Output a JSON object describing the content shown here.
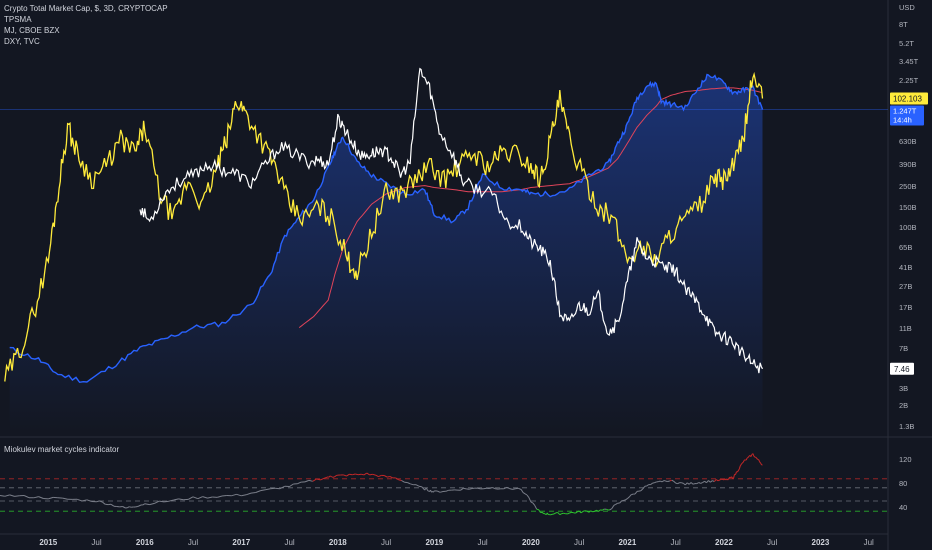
{
  "legend": {
    "title": "Crypto Total Market Cap, $, 3D, CRYPTOCAP",
    "line2": "TPSMA",
    "line3": "MJ, CBOE BZX",
    "line4": "DXY, TVC"
  },
  "colors": {
    "background": "#131722",
    "crypto": "#2962ff",
    "sma": "#e0445a",
    "mj": "#ffffff",
    "dxy": "#ffeb3b",
    "osc_neutral": "#7b7f8a",
    "osc_high": "#c62828",
    "osc_low": "#2ec52e"
  },
  "price_axis": {
    "currency": "USD",
    "ticks": [
      "8T",
      "5.2T",
      "3.45T",
      "2.25T",
      "1.45T",
      "630B",
      "390B",
      "250B",
      "150B",
      "100B",
      "65B",
      "41B",
      "27B",
      "17B",
      "11B",
      "7B",
      "4.6B",
      "3B",
      "2B",
      "1.3B"
    ]
  },
  "badges": {
    "dxy": "102.103",
    "crypto_value": "1.247T",
    "crypto_countdown": "14:4h",
    "mj": "7.46"
  },
  "x_axis": {
    "labels": [
      "2015",
      "Jul",
      "2016",
      "Jul",
      "2017",
      "Jul",
      "2018",
      "Jul",
      "2019",
      "Jul",
      "2020",
      "Jul",
      "2021",
      "Jul",
      "2022",
      "Jul",
      "2023",
      "Jul"
    ],
    "year_flags": [
      true,
      false,
      true,
      false,
      true,
      false,
      true,
      false,
      true,
      false,
      true,
      false,
      true,
      false,
      true,
      false,
      true,
      false
    ]
  },
  "indicator": {
    "title": "Miokulev market cycles indicator",
    "ticks": [
      "120",
      "80",
      "40"
    ]
  },
  "chart_data": [
    {
      "type": "line",
      "title": "Crypto Total Market Cap, $, 3D, CRYPTOCAP",
      "x": [
        2014.6,
        2014.9,
        2015.1,
        2015.4,
        2015.7,
        2015.95,
        2016.2,
        2016.5,
        2016.8,
        2017.1,
        2017.3,
        2017.45,
        2017.6,
        2017.75,
        2017.9,
        2017.97,
        2018.05,
        2018.2,
        2018.35,
        2018.5,
        2018.7,
        2018.9,
        2019.0,
        2019.2,
        2019.35,
        2019.5,
        2019.7,
        2019.9,
        2020.0,
        2020.2,
        2020.4,
        2020.6,
        2020.8,
        2020.9,
        2021.0,
        2021.1,
        2021.2,
        2021.3,
        2021.35,
        2021.45,
        2021.6,
        2021.75,
        2021.85,
        2022.0,
        2022.1,
        2022.2,
        2022.3,
        2022.4
      ],
      "series": [
        {
          "name": "Crypto Total Market Cap",
          "values": [
            7,
            5.5,
            4,
            3.4,
            5,
            7,
            8.5,
            11,
            12,
            18,
            35,
            80,
            120,
            180,
            350,
            500,
            700,
            400,
            300,
            250,
            200,
            220,
            130,
            110,
            150,
            300,
            230,
            220,
            200,
            200,
            220,
            300,
            380,
            600,
            900,
            1600,
            2100,
            2200,
            1500,
            1400,
            1300,
            2100,
            2700,
            2200,
            1800,
            1900,
            2000,
            1250
          ]
        },
        {
          "name": "TPSMA",
          "values": [
            null,
            null,
            null,
            null,
            null,
            null,
            null,
            null,
            null,
            null,
            null,
            null,
            11,
            14,
            20,
            35,
            60,
            110,
            160,
            200,
            230,
            240,
            230,
            220,
            210,
            210,
            210,
            220,
            230,
            240,
            250,
            290,
            350,
            430,
            600,
            850,
            1100,
            1350,
            1550,
            1700,
            1850,
            1900,
            1950,
            2000,
            2000,
            1950,
            1900,
            1800
          ]
        }
      ],
      "yscale": "log",
      "ylabel": "USD"
    },
    {
      "type": "line",
      "title": "MJ, CBOE BZX",
      "x": [
        2015.95,
        2016.05,
        2016.2,
        2016.35,
        2016.5,
        2016.65,
        2016.8,
        2016.95,
        2017.1,
        2017.25,
        2017.4,
        2017.55,
        2017.7,
        2017.8,
        2017.9,
        2018.0,
        2018.05,
        2018.15,
        2018.25,
        2018.35,
        2018.45,
        2018.55,
        2018.65,
        2018.75,
        2018.85,
        2018.95,
        2019.05,
        2019.2,
        2019.3,
        2019.45,
        2019.6,
        2019.75,
        2019.9,
        2020.0,
        2020.1,
        2020.2,
        2020.3,
        2020.4,
        2020.5,
        2020.6,
        2020.7,
        2020.8,
        2020.9,
        2021.0,
        2021.1,
        2021.2,
        2021.3,
        2021.4,
        2021.5,
        2021.6,
        2021.7,
        2021.8,
        2021.9,
        2022.0,
        2022.1,
        2022.2,
        2022.3,
        2022.4
      ],
      "series": [
        {
          "name": "MJ",
          "values": [
            150,
            110,
            200,
            260,
            300,
            380,
            340,
            310,
            250,
            380,
            560,
            480,
            400,
            420,
            380,
            1000,
            900,
            600,
            450,
            480,
            520,
            450,
            300,
            400,
            3000,
            2000,
            800,
            450,
            260,
            220,
            200,
            110,
            100,
            70,
            60,
            45,
            15,
            12,
            18,
            16,
            22,
            10,
            12,
            30,
            70,
            50,
            45,
            40,
            38,
            25,
            20,
            15,
            10,
            9,
            8,
            6,
            5,
            4.5
          ]
        }
      ],
      "yscale": "log",
      "note_values": "plotted on price scale"
    },
    {
      "type": "line",
      "title": "DXY, TVC",
      "x": [
        2014.55,
        2014.7,
        2014.85,
        2015.0,
        2015.1,
        2015.2,
        2015.3,
        2015.45,
        2015.6,
        2015.75,
        2015.9,
        2016.0,
        2016.15,
        2016.3,
        2016.45,
        2016.6,
        2016.75,
        2016.85,
        2016.95,
        2017.05,
        2017.2,
        2017.35,
        2017.5,
        2017.65,
        2017.8,
        2017.95,
        2018.1,
        2018.2,
        2018.35,
        2018.5,
        2018.65,
        2018.8,
        2018.95,
        2019.1,
        2019.25,
        2019.4,
        2019.55,
        2019.7,
        2019.85,
        2020.0,
        2020.1,
        2020.2,
        2020.3,
        2020.4,
        2020.55,
        2020.7,
        2020.85,
        2021.0,
        2021.15,
        2021.3,
        2021.45,
        2021.6,
        2021.75,
        2021.9,
        2022.0,
        2022.1,
        2022.2,
        2022.3,
        2022.4
      ],
      "series": [
        {
          "name": "DXY",
          "values": [
            81,
            83,
            86,
            90,
            95,
            100,
            98,
            96,
            97,
            99,
            98,
            100,
            95,
            93,
            96,
            94,
            97,
            99,
            102,
            101,
            99,
            97,
            94,
            93,
            94,
            93,
            90,
            89,
            92,
            95,
            95,
            96,
            97,
            96,
            97,
            98,
            97,
            98,
            98,
            97,
            96,
            99,
            102,
            99,
            96,
            94,
            93,
            90,
            91,
            90,
            92,
            93,
            94,
            96,
            96,
            97,
            99,
            104,
            102.1
          ]
        }
      ],
      "ylabel": "DXY"
    },
    {
      "type": "line",
      "title": "Miokulev market cycles indicator",
      "x": [
        2014.5,
        2015.0,
        2015.5,
        2015.8,
        2016.0,
        2016.5,
        2017.0,
        2017.5,
        2017.9,
        2018.0,
        2018.3,
        2018.6,
        2018.9,
        2019.0,
        2019.3,
        2019.6,
        2019.9,
        2020.1,
        2020.2,
        2020.4,
        2020.6,
        2020.8,
        2021.0,
        2021.2,
        2021.4,
        2021.6,
        2021.8,
        2022.0,
        2022.1,
        2022.2,
        2022.3,
        2022.4
      ],
      "series": [
        {
          "name": "Miokulev market cycles indicator",
          "values": [
            60,
            55,
            50,
            38,
            45,
            55,
            60,
            75,
            90,
            92,
            95,
            88,
            70,
            65,
            70,
            72,
            70,
            30,
            28,
            30,
            33,
            35,
            55,
            75,
            85,
            78,
            82,
            85,
            90,
            115,
            128,
            110
          ]
        }
      ],
      "ticks": [
        120,
        80,
        40
      ],
      "reference_lines": [
        87,
        72,
        50,
        33
      ],
      "ylim": [
        15,
        145
      ]
    }
  ]
}
